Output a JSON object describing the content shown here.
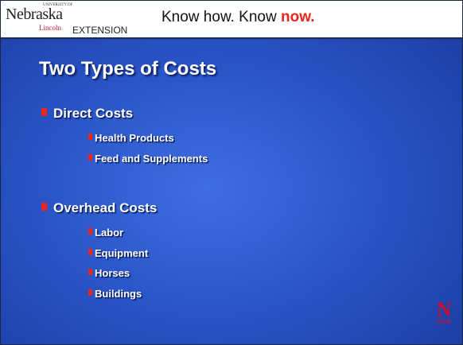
{
  "header": {
    "logo": {
      "top": "UNIVERSITY OF",
      "name": "Nebraska",
      "sub": "Lincoln",
      "unit": "EXTENSION"
    },
    "slogan": {
      "start": "Know how. Know",
      "emphasis": "now."
    }
  },
  "title": "Two Types of Costs",
  "sections": [
    {
      "label": "Direct Costs",
      "items": [
        "Health Products",
        "Feed and Supplements"
      ]
    },
    {
      "label": "Overhead Costs",
      "items": [
        "Labor",
        "Equipment",
        "Horses",
        "Buildings"
      ]
    }
  ],
  "footer_logo": {
    "mark": "N",
    "text": "IANR"
  }
}
